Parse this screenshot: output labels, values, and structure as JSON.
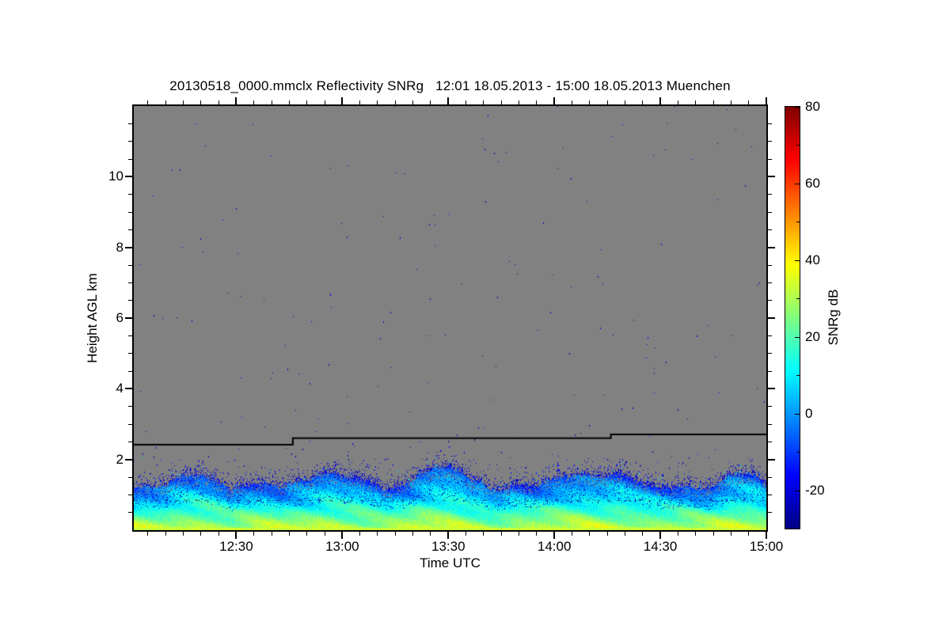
{
  "page": {
    "background_color": "#ffffff"
  },
  "chart_data": {
    "type": "heatmap",
    "title": "20130518_0000.mmclx Reflectivity SNRg   12:01 18.05.2013 - 15:00 18.05.2013 Muenchen",
    "xlabel": "Time UTC",
    "ylabel": "Height AGL km",
    "x_axis": {
      "start": "12:01",
      "end": "15:00",
      "start_minute_after_1200": 1,
      "end_minute_after_1200": 180,
      "major_ticks": [
        {
          "minute": 30,
          "label": "12:30"
        },
        {
          "minute": 60,
          "label": "13:00"
        },
        {
          "minute": 90,
          "label": "13:30"
        },
        {
          "minute": 120,
          "label": "14:00"
        },
        {
          "minute": 150,
          "label": "14:30"
        },
        {
          "minute": 180,
          "label": "15:00"
        }
      ],
      "minor_tick_step_min": 5
    },
    "y_axis": {
      "range_km": [
        0,
        12
      ],
      "major_ticks_km": [
        2,
        4,
        6,
        8,
        10
      ],
      "minor_tick_step_km": 0.5
    },
    "colorbar": {
      "label": "SNRg dB",
      "range_db": [
        -30,
        80
      ],
      "tick_values_db": [
        80,
        60,
        40,
        20,
        0,
        -20
      ],
      "tick_labels": [
        "80",
        "60",
        "40",
        "20",
        "0",
        "-20"
      ],
      "minor_tick_step_db": 10,
      "colormap": "jet",
      "colormap_stops": [
        {
          "pos": 0.0,
          "color": "#000083"
        },
        {
          "pos": 0.125,
          "color": "#0000ff"
        },
        {
          "pos": 0.375,
          "color": "#00ffff"
        },
        {
          "pos": 0.625,
          "color": "#ffff00"
        },
        {
          "pos": 0.875,
          "color": "#ff0000"
        },
        {
          "pos": 1.0,
          "color": "#7f0000"
        }
      ]
    },
    "no_signal_color": "#818181",
    "frame_color": "#000000",
    "boundary_layer_echo": {
      "description": "Turbulent boundary-layer echo below ~1.8 km: ~30-35 dB SNRg (yellow-green) at the surface grading to cyan then blue at echo top, with dark-blue mottling and ragged top",
      "top_profile_min_km": [
        [
          0,
          1.15
        ],
        [
          7,
          1.3
        ],
        [
          16,
          1.55
        ],
        [
          23,
          1.5
        ],
        [
          29,
          1.2
        ],
        [
          36,
          1.45
        ],
        [
          43,
          1.1
        ],
        [
          51,
          1.35
        ],
        [
          58,
          1.55
        ],
        [
          65,
          1.35
        ],
        [
          72,
          1.1
        ],
        [
          79,
          1.3
        ],
        [
          86,
          1.65
        ],
        [
          91,
          1.7
        ],
        [
          97,
          1.3
        ],
        [
          102,
          1.15
        ],
        [
          108,
          1.3
        ],
        [
          113,
          1.1
        ],
        [
          119,
          1.3
        ],
        [
          126,
          1.5
        ],
        [
          132,
          1.35
        ],
        [
          139,
          1.55
        ],
        [
          145,
          1.2
        ],
        [
          150,
          1.05
        ],
        [
          157,
          1.25
        ],
        [
          164,
          1.1
        ],
        [
          170,
          1.45
        ],
        [
          176,
          1.5
        ],
        [
          179,
          1.35
        ]
      ],
      "surface_snr_db": 33,
      "echo_top_snr_db": -6
    },
    "mode_transition_line": {
      "color": "#000000",
      "segments_min_km": [
        [
          1,
          46,
          2.42
        ],
        [
          46,
          136,
          2.6
        ],
        [
          136,
          180,
          2.71
        ]
      ]
    },
    "clutter_dashed_line_km": 0.85,
    "noise": {
      "seed": 20130518,
      "speckle_db": -22,
      "sparse_density_upper": 0.00045,
      "sparse_density_below_line": 0.0009,
      "band_density_near_bl_top": 0.012
    }
  }
}
